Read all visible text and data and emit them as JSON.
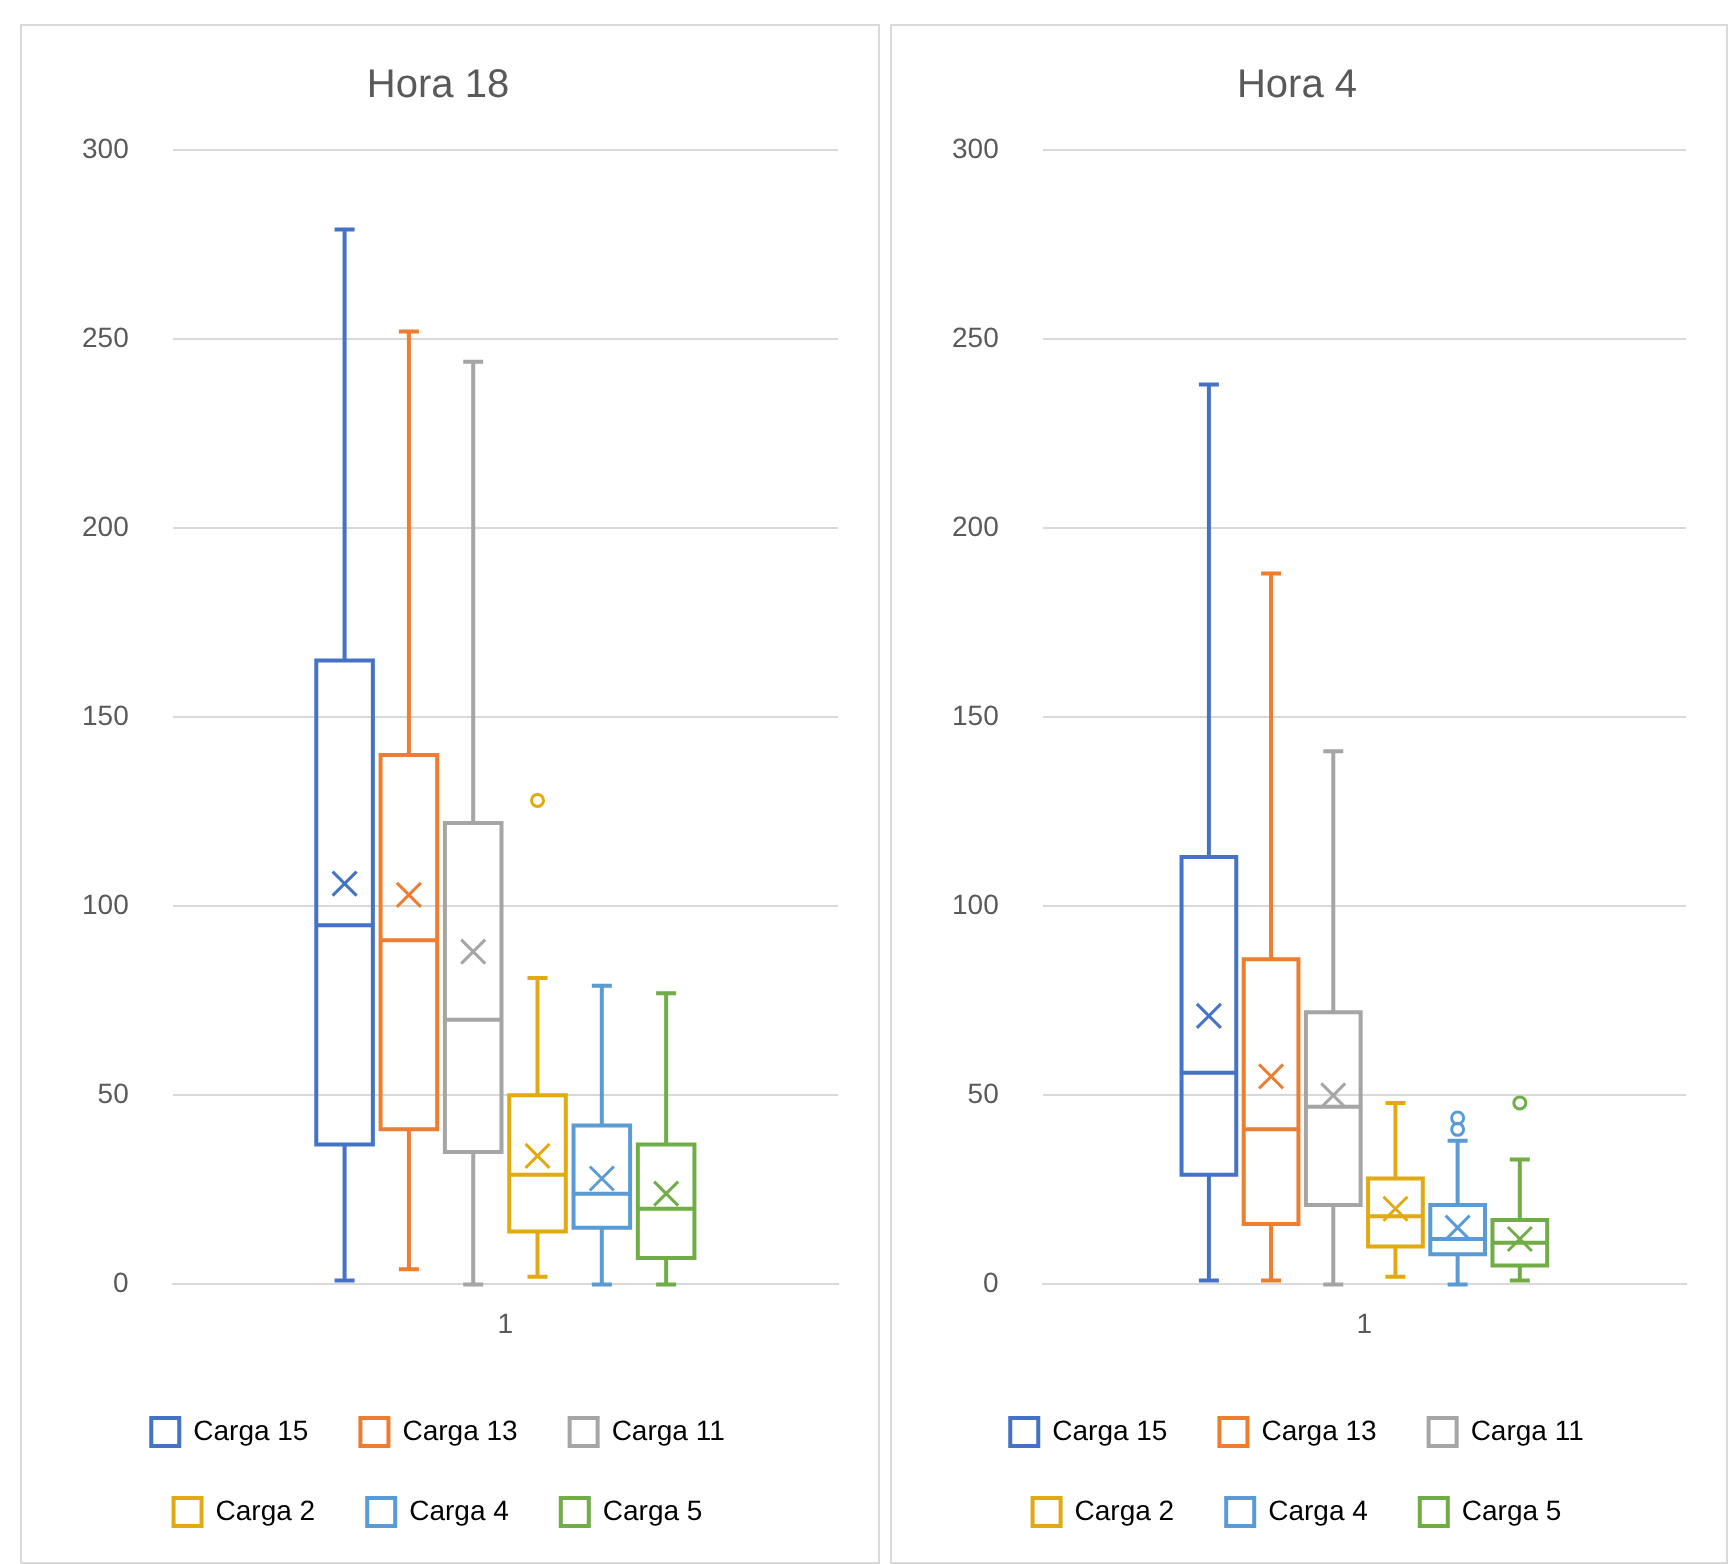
{
  "chart_data": [
    {
      "type": "box",
      "title": "Hora 18",
      "categories": [
        "1"
      ],
      "ylim": [
        0,
        300
      ],
      "yticks": [
        0,
        50,
        100,
        150,
        200,
        250,
        300
      ],
      "grid": "y",
      "legend": "bottom",
      "series": [
        {
          "name": "Carga 15",
          "color": "#4472c4",
          "boxes": [
            {
              "low": 1,
              "q1": 37,
              "median": 95,
              "q3": 165,
              "high": 279,
              "mean": 106
            }
          ]
        },
        {
          "name": "Carga 13",
          "color": "#ed7d31",
          "boxes": [
            {
              "low": 4,
              "q1": 41,
              "median": 91,
              "q3": 140,
              "high": 252,
              "mean": 103
            }
          ]
        },
        {
          "name": "Carga 11",
          "color": "#a5a5a5",
          "boxes": [
            {
              "low": 0,
              "q1": 35,
              "median": 70,
              "q3": 122,
              "high": 244,
              "mean": 88
            }
          ]
        },
        {
          "name": "Carga 2",
          "color": "#e0aa10",
          "boxes": [
            {
              "low": 2,
              "q1": 14,
              "median": 29,
              "q3": 50,
              "high": 81,
              "mean": 34,
              "outliers": [
                128
              ]
            }
          ]
        },
        {
          "name": "Carga 4",
          "color": "#5b9bd5",
          "boxes": [
            {
              "low": 0,
              "q1": 15,
              "median": 24,
              "q3": 42,
              "high": 79,
              "mean": 28
            }
          ]
        },
        {
          "name": "Carga 5",
          "color": "#70ad47",
          "boxes": [
            {
              "low": 0,
              "q1": 7,
              "median": 20,
              "q3": 37,
              "high": 77,
              "mean": 24
            }
          ]
        }
      ]
    },
    {
      "type": "box",
      "title": "Hora 4",
      "categories": [
        "1"
      ],
      "ylim": [
        0,
        300
      ],
      "yticks": [
        0,
        50,
        100,
        150,
        200,
        250,
        300
      ],
      "grid": "y",
      "legend": "bottom",
      "series": [
        {
          "name": "Carga 15",
          "color": "#4472c4",
          "boxes": [
            {
              "low": 1,
              "q1": 29,
              "median": 56,
              "q3": 113,
              "high": 238,
              "mean": 71
            }
          ]
        },
        {
          "name": "Carga 13",
          "color": "#ed7d31",
          "boxes": [
            {
              "low": 1,
              "q1": 16,
              "median": 41,
              "q3": 86,
              "high": 188,
              "mean": 55
            }
          ]
        },
        {
          "name": "Carga 11",
          "color": "#a5a5a5",
          "boxes": [
            {
              "low": 0,
              "q1": 21,
              "median": 47,
              "q3": 72,
              "high": 141,
              "mean": 50
            }
          ]
        },
        {
          "name": "Carga 2",
          "color": "#e0aa10",
          "boxes": [
            {
              "low": 2,
              "q1": 10,
              "median": 18,
              "q3": 28,
              "high": 48,
              "mean": 20
            }
          ]
        },
        {
          "name": "Carga 4",
          "color": "#5b9bd5",
          "boxes": [
            {
              "low": 0,
              "q1": 8,
              "median": 12,
              "q3": 21,
              "high": 38,
              "mean": 15,
              "outliers": [
                41,
                44
              ]
            }
          ]
        },
        {
          "name": "Carga 5",
          "color": "#70ad47",
          "boxes": [
            {
              "low": 1,
              "q1": 5,
              "median": 11,
              "q3": 17,
              "high": 33,
              "mean": 12,
              "outliers": [
                48
              ]
            }
          ]
        }
      ]
    }
  ]
}
